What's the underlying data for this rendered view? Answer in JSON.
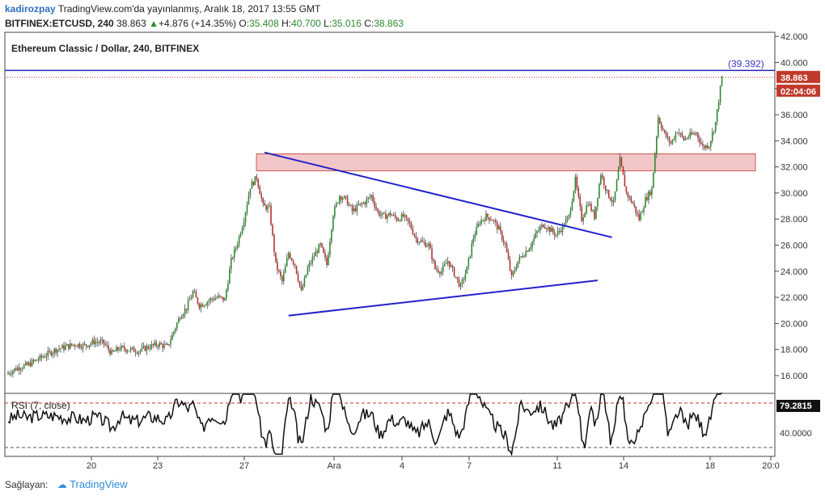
{
  "header": {
    "user": "kadirozpay",
    "published": "TradingView.com'da yayınlanmış, Aralık 18, 2017 13:55 GMT",
    "symbol": "BITFINEX:ETCUSD, 240",
    "last": "38.863",
    "change": "+4.876 (+14.35%)",
    "o_label": "O:",
    "o": "35.408",
    "h_label": "H:",
    "h": "40.700",
    "l_label": "L:",
    "l": "35.016",
    "c_label": "C:",
    "c": "38.863"
  },
  "footer": {
    "label": "Sağlayan:",
    "brand": "TradingView"
  },
  "chart_data": {
    "type": "candlestick",
    "title": "Ethereum Classic / Dollar, 240, BITFINEX",
    "y_ticks": [
      "16.000",
      "18.000",
      "20.000",
      "22.000",
      "24.000",
      "26.000",
      "28.000",
      "30.000",
      "32.000",
      "34.000",
      "36.000",
      "38.000",
      "40.000",
      "42.000"
    ],
    "x_ticks": [
      "20",
      "23",
      "27",
      "Ara",
      "4",
      "7",
      "11",
      "14",
      "18",
      "20:0"
    ],
    "ylim": [
      14.8,
      42.0
    ],
    "close_points": [
      [
        0,
        16.2
      ],
      [
        6,
        16.6
      ],
      [
        12,
        16.8
      ],
      [
        18,
        17.2
      ],
      [
        24,
        17.6
      ],
      [
        30,
        18.0
      ],
      [
        36,
        18.2
      ],
      [
        42,
        18.4
      ],
      [
        48,
        18.3
      ],
      [
        54,
        18.6
      ],
      [
        60,
        18.5
      ],
      [
        65,
        17.7
      ],
      [
        70,
        18.1
      ],
      [
        76,
        18.0
      ],
      [
        82,
        17.9
      ],
      [
        88,
        18.2
      ],
      [
        94,
        18.4
      ],
      [
        100,
        18.2
      ],
      [
        104,
        19.4
      ],
      [
        108,
        20.6
      ],
      [
        112,
        21.2
      ],
      [
        116,
        22.4
      ],
      [
        120,
        21.4
      ],
      [
        124,
        21.6
      ],
      [
        128,
        21.9
      ],
      [
        132,
        22.0
      ],
      [
        136,
        21.8
      ],
      [
        140,
        24.8
      ],
      [
        144,
        26.2
      ],
      [
        148,
        28.0
      ],
      [
        152,
        30.5
      ],
      [
        156,
        31.2
      ],
      [
        160,
        29.0
      ],
      [
        164,
        28.8
      ],
      [
        168,
        24.5
      ],
      [
        172,
        23.2
      ],
      [
        176,
        25.4
      ],
      [
        180,
        24.5
      ],
      [
        184,
        22.4
      ],
      [
        188,
        24.2
      ],
      [
        192,
        25.2
      ],
      [
        196,
        26.0
      ],
      [
        200,
        24.5
      ],
      [
        204,
        28.4
      ],
      [
        208,
        29.8
      ],
      [
        212,
        29.5
      ],
      [
        216,
        28.6
      ],
      [
        220,
        29.0
      ],
      [
        224,
        29.3
      ],
      [
        228,
        29.8
      ],
      [
        232,
        28.5
      ],
      [
        236,
        28.2
      ],
      [
        240,
        28.4
      ],
      [
        244,
        28.0
      ],
      [
        248,
        28.2
      ],
      [
        252,
        27.6
      ],
      [
        256,
        26.5
      ],
      [
        260,
        26.2
      ],
      [
        264,
        26.0
      ],
      [
        268,
        24.2
      ],
      [
        272,
        24.0
      ],
      [
        276,
        24.8
      ],
      [
        280,
        23.8
      ],
      [
        284,
        22.8
      ],
      [
        288,
        24.2
      ],
      [
        292,
        26.6
      ],
      [
        296,
        27.8
      ],
      [
        300,
        28.2
      ],
      [
        304,
        28.0
      ],
      [
        308,
        27.2
      ],
      [
        312,
        26.0
      ],
      [
        316,
        23.5
      ],
      [
        320,
        24.8
      ],
      [
        324,
        25.4
      ],
      [
        328,
        26.0
      ],
      [
        332,
        27.0
      ],
      [
        336,
        27.6
      ],
      [
        340,
        27.2
      ],
      [
        344,
        26.8
      ],
      [
        348,
        27.4
      ],
      [
        352,
        28.2
      ],
      [
        356,
        31.0
      ],
      [
        360,
        28.0
      ],
      [
        364,
        29.3
      ],
      [
        368,
        28.2
      ],
      [
        372,
        31.5
      ],
      [
        376,
        30.0
      ],
      [
        380,
        29.2
      ],
      [
        384,
        32.5
      ],
      [
        388,
        30.0
      ],
      [
        392,
        29.2
      ],
      [
        396,
        28.0
      ],
      [
        400,
        29.5
      ],
      [
        404,
        30.3
      ],
      [
        408,
        35.8
      ],
      [
        412,
        34.5
      ],
      [
        416,
        33.8
      ],
      [
        420,
        34.8
      ],
      [
        424,
        34.1
      ],
      [
        428,
        34.4
      ],
      [
        432,
        34.6
      ],
      [
        436,
        33.5
      ],
      [
        440,
        33.7
      ],
      [
        444,
        35.4
      ],
      [
        448,
        38.86
      ]
    ],
    "resistance_zone": [
      31.7,
      33.0
    ],
    "resistance_line": 39.392,
    "resistance_label": "(39.392)",
    "last_price": "38.863",
    "countdown": "02:04:06",
    "trendlines": [
      {
        "name": "upper",
        "from": [
          161,
          33.1
        ],
        "to": [
          379,
          26.6
        ]
      },
      {
        "name": "lower",
        "from": [
          176,
          20.6
        ],
        "to": [
          370,
          23.3
        ]
      }
    ],
    "rsi": {
      "label": "RSI (7, close)",
      "value": "79.2815",
      "tick": "40.0000",
      "upper": 70,
      "lower": 30
    }
  }
}
